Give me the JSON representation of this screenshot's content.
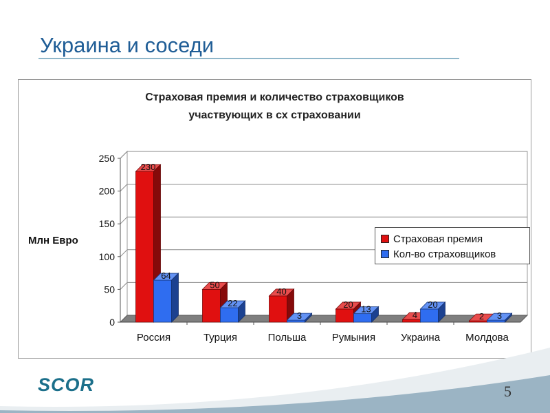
{
  "slide": {
    "title": "Украина и соседи",
    "page_number": "5",
    "logo_text": "SCOR",
    "accent_color": "#1f5d96"
  },
  "chart_data": {
    "type": "bar",
    "title_line1": "Страховая премия и количество страховщиков",
    "title_line2": "участвующих в сх страховании",
    "ylabel": "Млн Евро",
    "xlabel": "",
    "ylim": [
      0,
      250
    ],
    "yticks": [
      0,
      50,
      100,
      150,
      200,
      250
    ],
    "grid": true,
    "legend_position": "right",
    "categories": [
      "Россия",
      "Турция",
      "Польша",
      "Румыния",
      "Украина",
      "Молдова"
    ],
    "series": [
      {
        "name": "Страховая премия",
        "values": [
          230,
          50,
          40,
          20,
          4,
          2
        ],
        "color": "#e01010"
      },
      {
        "name": "Кол-во страховщиков",
        "values": [
          64,
          22,
          3,
          13,
          20,
          3
        ],
        "color": "#2f6df0"
      }
    ]
  }
}
